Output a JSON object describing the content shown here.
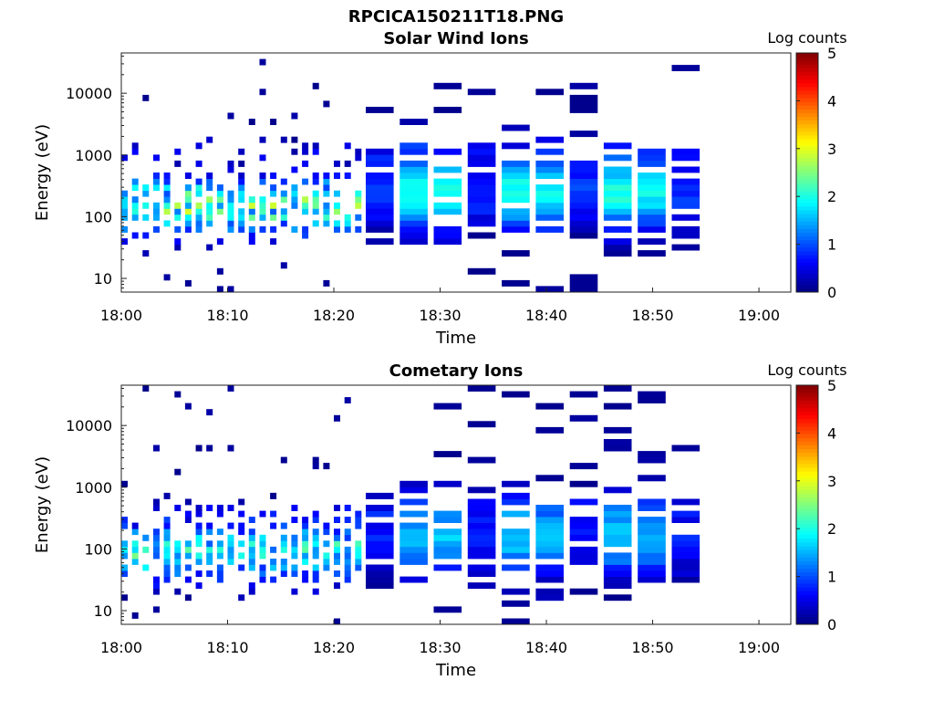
{
  "figure": {
    "title": "RPCICA150211T18.PNG"
  },
  "colors": {
    "colormap": [
      "#00007f",
      "#0000ff",
      "#007fff",
      "#00ffff",
      "#7fff7f",
      "#ffff00",
      "#ff7f00",
      "#ff0000",
      "#7f0000"
    ],
    "axis": "#222222"
  },
  "chart_data": [
    {
      "type": "heatmap",
      "title": "Solar Wind Ions",
      "xlabel": "Time",
      "ylabel": "Energy (eV)",
      "xticks": [
        "18:00",
        "18:10",
        "18:20",
        "18:30",
        "18:40",
        "18:50",
        "19:00"
      ],
      "xlim_minutes": [
        0,
        63
      ],
      "yscale": "log",
      "ylim": [
        6,
        45000
      ],
      "yticks": [
        10,
        100,
        1000,
        10000
      ],
      "ytick_labels": [
        "10",
        "100",
        "1000",
        "10000"
      ],
      "colorbar": {
        "label": "Log counts",
        "range": [
          0,
          5
        ],
        "ticks": [
          "0",
          "1",
          "2",
          "3",
          "4",
          "5"
        ]
      },
      "segments": [
        {
          "start_min": 0,
          "end_min": 23,
          "mode": "sparse",
          "peak_energy": 150,
          "peak_log_counts": 2.4,
          "high_energy_band": 1200
        },
        {
          "start_min": 23,
          "end_min": 55,
          "mode": "dense",
          "peak_energy": 250,
          "peak_log_counts": 2.1,
          "high_energy_band": 1200
        }
      ]
    },
    {
      "type": "heatmap",
      "title": "Cometary Ions",
      "xlabel": "Time",
      "ylabel": "Energy (eV)",
      "xticks": [
        "18:00",
        "18:10",
        "18:20",
        "18:30",
        "18:40",
        "18:50",
        "19:00"
      ],
      "xlim_minutes": [
        0,
        63
      ],
      "yscale": "log",
      "ylim": [
        6,
        45000
      ],
      "yticks": [
        10,
        100,
        1000,
        10000
      ],
      "ytick_labels": [
        "10",
        "100",
        "1000",
        "10000"
      ],
      "colorbar": {
        "label": "Log counts",
        "range": [
          0,
          5
        ],
        "ticks": [
          "0",
          "1",
          "2",
          "3",
          "4",
          "5"
        ]
      },
      "segments": [
        {
          "start_min": 0,
          "end_min": 23,
          "mode": "sparse",
          "peak_energy": 90,
          "peak_log_counts": 2.0,
          "high_energy_band": 400
        },
        {
          "start_min": 23,
          "end_min": 55,
          "mode": "dense",
          "peak_energy": 150,
          "peak_log_counts": 1.7,
          "high_energy_band": 500
        }
      ]
    }
  ]
}
